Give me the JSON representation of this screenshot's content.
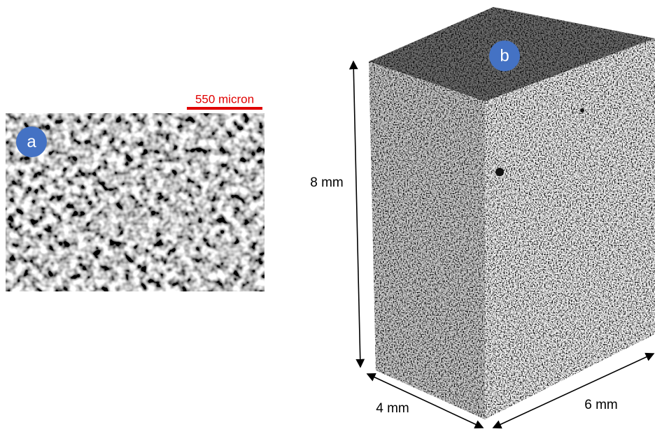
{
  "panels": [
    {
      "label": "a",
      "scale_bar": "550 micron"
    },
    {
      "label": "b",
      "dimensions": {
        "height": "8 mm",
        "depth": "4 mm",
        "width": "6 mm"
      }
    }
  ]
}
